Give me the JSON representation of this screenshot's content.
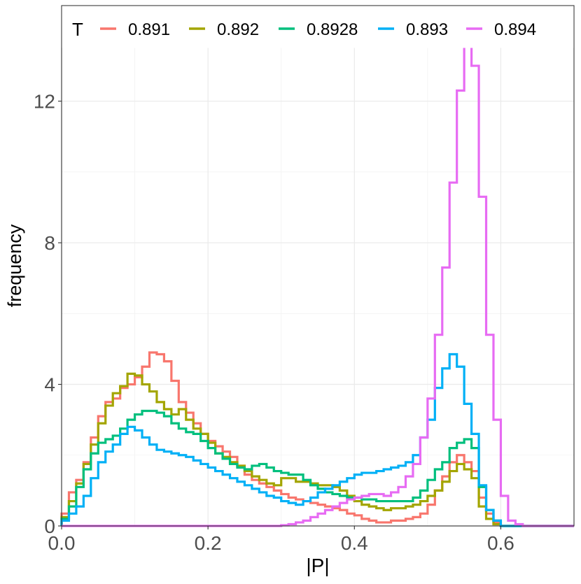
{
  "chart_data": {
    "type": "line",
    "style": "histogram-step",
    "xlabel": "|P|",
    "ylabel": "frequency",
    "legend_title": "T",
    "legend_position": "top",
    "grid": true,
    "xlim": [
      0,
      0.7
    ],
    "ylim": [
      0,
      14.7
    ],
    "xticks": [
      0.0,
      0.2,
      0.4,
      0.6
    ],
    "xtick_labels": [
      "0.0",
      "0.2",
      "0.4",
      "0.6"
    ],
    "yticks": [
      0,
      4,
      8,
      12
    ],
    "ytick_labels": [
      "0",
      "4",
      "8",
      "12"
    ],
    "bin_width": 0.01,
    "bin_start": 0.0,
    "series": [
      {
        "name": "0.891",
        "color": "#F8766D",
        "values": [
          0.35,
          0.95,
          1.3,
          1.8,
          2.5,
          3.1,
          3.5,
          3.6,
          3.9,
          4.0,
          4.2,
          4.5,
          4.9,
          4.85,
          4.65,
          4.1,
          3.5,
          3.2,
          2.9,
          2.6,
          2.4,
          2.25,
          2.1,
          1.95,
          1.7,
          1.45,
          1.3,
          1.2,
          1.1,
          1.0,
          0.9,
          0.8,
          0.75,
          0.7,
          0.65,
          0.6,
          0.55,
          0.5,
          0.45,
          0.35,
          0.3,
          0.2,
          0.15,
          0.1,
          0.1,
          0.15,
          0.15,
          0.2,
          0.25,
          0.35,
          0.6,
          1.0,
          1.4,
          1.8,
          2.0,
          1.8,
          1.55,
          0.8,
          0.35,
          0.1,
          0.0,
          0.0,
          0.0,
          0.0,
          0.0,
          0.0,
          0.0,
          0.0,
          0.0,
          0.0
        ]
      },
      {
        "name": "0.892",
        "color": "#A3A500",
        "values": [
          0.25,
          0.7,
          1.2,
          1.75,
          2.3,
          2.9,
          3.4,
          3.75,
          3.95,
          4.3,
          4.25,
          4.0,
          3.8,
          3.5,
          3.3,
          3.15,
          3.3,
          3.0,
          2.75,
          2.6,
          2.35,
          2.05,
          1.95,
          1.8,
          1.7,
          1.55,
          1.4,
          1.3,
          1.2,
          1.15,
          1.35,
          1.35,
          1.25,
          1.25,
          1.2,
          1.15,
          1.15,
          1.1,
          1.0,
          0.85,
          0.7,
          0.6,
          0.55,
          0.5,
          0.45,
          0.5,
          0.5,
          0.55,
          0.6,
          0.7,
          0.85,
          1.0,
          1.25,
          1.55,
          1.75,
          1.6,
          1.35,
          0.55,
          0.2,
          0.05,
          0.0,
          0.0,
          0.0,
          0.0,
          0.0,
          0.0,
          0.0,
          0.0,
          0.0,
          0.0
        ]
      },
      {
        "name": "0.8928",
        "color": "#00BF7D",
        "values": [
          0.2,
          0.55,
          1.1,
          1.6,
          2.05,
          2.35,
          2.45,
          2.55,
          2.75,
          3.0,
          3.15,
          3.25,
          3.25,
          3.2,
          3.1,
          2.9,
          2.75,
          2.65,
          2.6,
          2.4,
          2.2,
          2.05,
          1.9,
          1.75,
          1.65,
          1.6,
          1.7,
          1.75,
          1.65,
          1.55,
          1.5,
          1.45,
          1.45,
          1.3,
          1.15,
          1.05,
          0.95,
          0.9,
          0.85,
          0.8,
          0.8,
          0.75,
          0.75,
          0.7,
          0.7,
          0.7,
          0.7,
          0.7,
          0.8,
          1.0,
          1.3,
          1.6,
          1.8,
          2.2,
          2.35,
          2.45,
          2.2,
          1.1,
          0.45,
          0.15,
          0.0,
          0.0,
          0.0,
          0.0,
          0.0,
          0.0,
          0.0,
          0.0,
          0.0,
          0.0
        ]
      },
      {
        "name": "0.893",
        "color": "#00B0F6",
        "values": [
          0.15,
          0.35,
          0.55,
          0.85,
          1.35,
          1.8,
          2.1,
          2.3,
          2.6,
          2.8,
          2.7,
          2.5,
          2.3,
          2.15,
          2.1,
          2.05,
          2.0,
          1.95,
          1.85,
          1.75,
          1.65,
          1.55,
          1.45,
          1.35,
          1.25,
          1.15,
          1.05,
          0.95,
          0.85,
          0.8,
          0.7,
          0.65,
          0.6,
          0.7,
          0.8,
          0.95,
          1.05,
          1.15,
          1.25,
          1.35,
          1.45,
          1.5,
          1.5,
          1.55,
          1.6,
          1.65,
          1.7,
          1.8,
          2.0,
          2.5,
          3.0,
          3.9,
          4.45,
          4.85,
          4.5,
          3.45,
          2.6,
          1.15,
          0.45,
          0.15,
          0.0,
          0.0,
          0.0,
          0.0,
          0.0,
          0.0,
          0.0,
          0.0,
          0.0,
          0.0
        ]
      },
      {
        "name": "0.894",
        "color": "#E76BF3",
        "values": [
          0.0,
          0.0,
          0.0,
          0.0,
          0.0,
          0.0,
          0.0,
          0.0,
          0.0,
          0.0,
          0.0,
          0.0,
          0.0,
          0.0,
          0.0,
          0.0,
          0.0,
          0.0,
          0.0,
          0.0,
          0.0,
          0.0,
          0.0,
          0.0,
          0.0,
          0.0,
          0.0,
          0.0,
          0.0,
          0.0,
          0.02,
          0.05,
          0.1,
          0.15,
          0.25,
          0.35,
          0.45,
          0.55,
          0.65,
          0.75,
          0.8,
          0.85,
          0.9,
          0.9,
          0.85,
          0.95,
          1.1,
          1.4,
          1.75,
          2.5,
          3.6,
          5.4,
          7.3,
          9.7,
          12.3,
          13.6,
          13.0,
          9.3,
          5.4,
          3.0,
          0.85,
          0.15,
          0.05,
          0.0,
          0.0,
          0.0,
          0.0,
          0.0,
          0.0,
          0.0
        ]
      }
    ]
  }
}
